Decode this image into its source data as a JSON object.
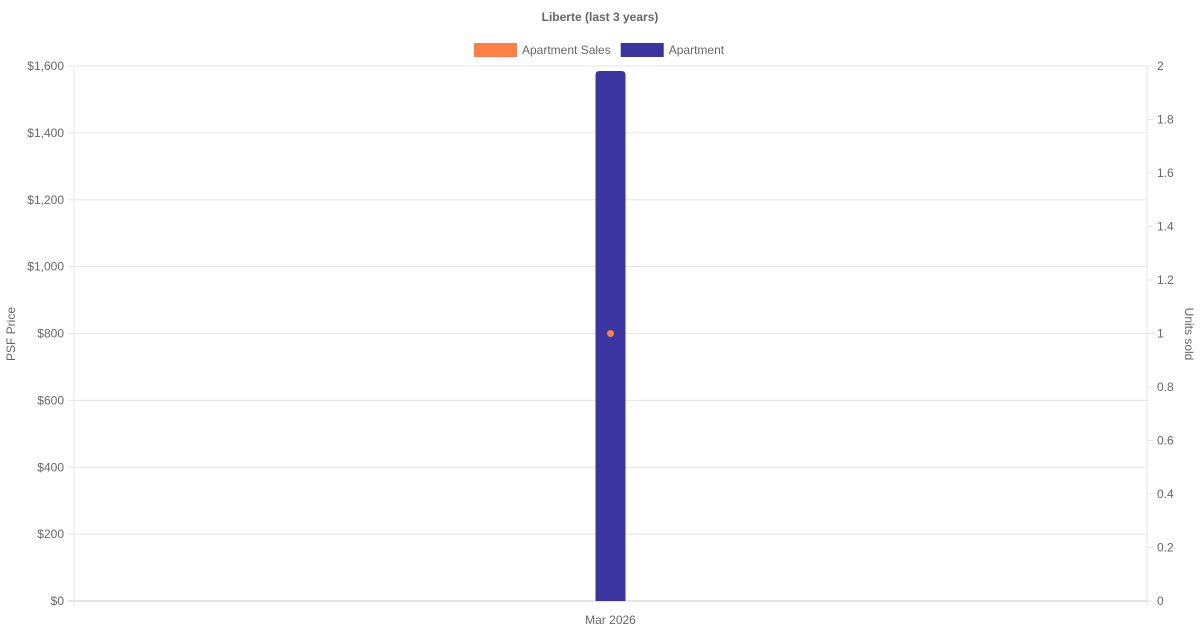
{
  "chart_data": {
    "type": "bar",
    "title": "Liberte (last 3 years)",
    "categories": [
      "Mar 2026"
    ],
    "series": [
      {
        "name": "Apartment Sales",
        "type": "line",
        "axis": "left",
        "color": "#FF7F45",
        "values": [
          800
        ]
      },
      {
        "name": "Apartment",
        "type": "bar",
        "axis": "right",
        "color": "#3A35A0",
        "values": [
          2
        ]
      }
    ],
    "y_left": {
      "label": "PSF Price",
      "range": [
        0,
        1600
      ],
      "ticks": [
        "$0",
        "$200",
        "$400",
        "$600",
        "$800",
        "$1,000",
        "$1,200",
        "$1,400",
        "$1,600"
      ]
    },
    "y_right": {
      "label": "Units sold",
      "range": [
        0,
        2
      ],
      "ticks": [
        "0",
        "0.2",
        "0.4",
        "0.6",
        "0.8",
        "1",
        "1.2",
        "1.4",
        "1.6",
        "1.8",
        "2"
      ]
    },
    "grid": true,
    "legend": "top"
  }
}
